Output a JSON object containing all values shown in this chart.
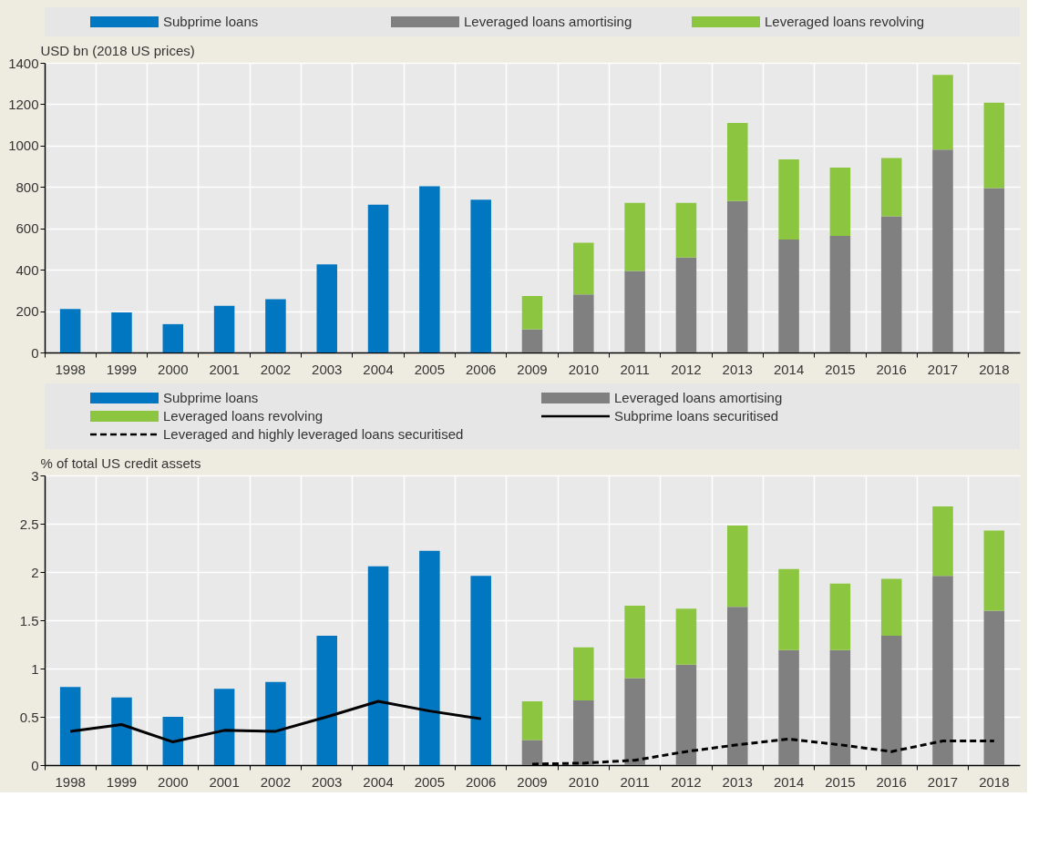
{
  "chart_data": [
    {
      "type": "bar",
      "stacked": true,
      "ylabel": "USD bn (2018 US prices)",
      "legend": "top",
      "grid": true,
      "categories": [
        "1998",
        "1999",
        "2000",
        "2001",
        "2002",
        "2003",
        "2004",
        "2005",
        "2006",
        "2009",
        "2010",
        "2011",
        "2012",
        "2013",
        "2014",
        "2015",
        "2016",
        "2017",
        "2018"
      ],
      "ylim": [
        0,
        1400
      ],
      "yticks": [
        0,
        200,
        400,
        600,
        800,
        1000,
        1200,
        1400
      ],
      "series": [
        {
          "name": "Subprime loans",
          "color": "#0077c0",
          "values": [
            210,
            194,
            137,
            226,
            257,
            426,
            714,
            803,
            739,
            null,
            null,
            null,
            null,
            null,
            null,
            null,
            null,
            null,
            null
          ]
        },
        {
          "name": "Leveraged loans amortising",
          "color": "#808080",
          "values": [
            null,
            null,
            null,
            null,
            null,
            null,
            null,
            null,
            null,
            112,
            281,
            394,
            459,
            732,
            546,
            563,
            658,
            981,
            795
          ]
        },
        {
          "name": "Leveraged loans revolving",
          "color": "#8cc641",
          "values": [
            null,
            null,
            null,
            null,
            null,
            null,
            null,
            null,
            null,
            161,
            250,
            329,
            264,
            377,
            387,
            331,
            282,
            361,
            412
          ]
        }
      ]
    },
    {
      "type": "bar",
      "stacked": true,
      "ylabel": "% of total US credit assets",
      "legend": "top",
      "grid": true,
      "marker": "none",
      "categories": [
        "1998",
        "1999",
        "2000",
        "2001",
        "2002",
        "2003",
        "2004",
        "2005",
        "2006",
        "2009",
        "2010",
        "2011",
        "2012",
        "2013",
        "2014",
        "2015",
        "2016",
        "2017",
        "2018"
      ],
      "ylim": [
        0,
        3
      ],
      "yticks": [
        0,
        0.5,
        1,
        1.5,
        2,
        2.5,
        3
      ],
      "series": [
        {
          "name": "Subprime loans",
          "color": "#0077c0",
          "values": [
            0.81,
            0.7,
            0.5,
            0.79,
            0.86,
            1.34,
            2.06,
            2.22,
            1.96,
            null,
            null,
            null,
            null,
            null,
            null,
            null,
            null,
            null,
            null
          ]
        },
        {
          "name": "Leveraged loans amortising",
          "color": "#808080",
          "values": [
            null,
            null,
            null,
            null,
            null,
            null,
            null,
            null,
            null,
            0.26,
            0.67,
            0.9,
            1.04,
            1.64,
            1.19,
            1.19,
            1.34,
            1.96,
            1.6
          ]
        },
        {
          "name": "Leveraged loans revolving",
          "color": "#8cc641",
          "values": [
            null,
            null,
            null,
            null,
            null,
            null,
            null,
            null,
            null,
            0.4,
            0.55,
            0.75,
            0.58,
            0.84,
            0.84,
            0.69,
            0.59,
            0.72,
            0.83
          ]
        },
        {
          "name": "Subprime loans securitised",
          "type": "line",
          "line_style": "solid",
          "color": "#000000",
          "values": [
            0.35,
            0.42,
            0.24,
            0.36,
            0.35,
            0.5,
            0.66,
            0.56,
            0.48,
            null,
            null,
            null,
            null,
            null,
            null,
            null,
            null,
            null,
            null
          ]
        },
        {
          "name": "Leveraged and highly leveraged loans securitised",
          "type": "line",
          "line_style": "dashed",
          "color": "#000000",
          "values": [
            null,
            null,
            null,
            null,
            null,
            null,
            null,
            null,
            null,
            0.01,
            0.02,
            0.05,
            0.14,
            0.21,
            0.27,
            0.21,
            0.14,
            0.25,
            0.25
          ]
        }
      ]
    }
  ]
}
